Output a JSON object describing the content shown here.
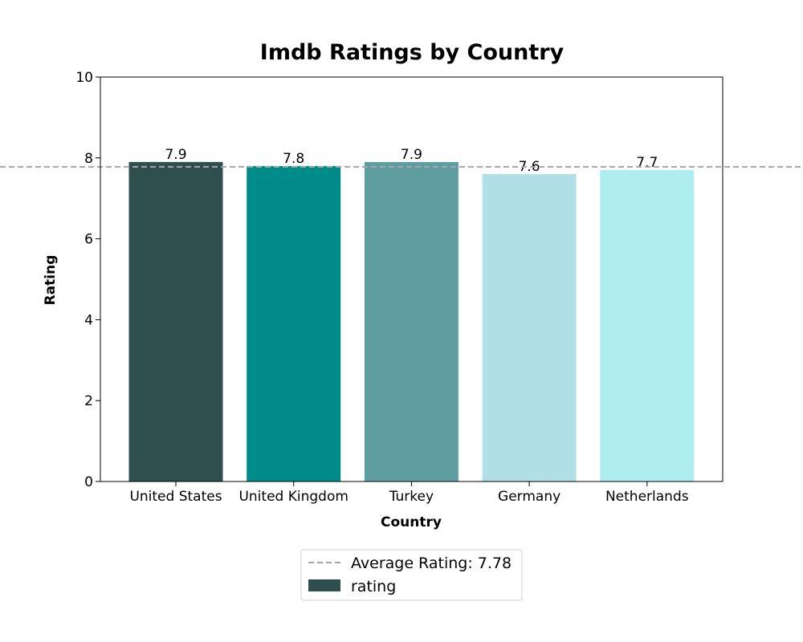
{
  "chart_data": {
    "type": "bar",
    "title": "Imdb Ratings by Country",
    "xlabel": "Country",
    "ylabel": "Rating",
    "ylim": [
      0,
      10
    ],
    "yticks": [
      0,
      2,
      4,
      6,
      8,
      10
    ],
    "categories": [
      "United States",
      "United Kingdom",
      "Turkey",
      "Germany",
      "Netherlands"
    ],
    "series": [
      {
        "name": "rating",
        "values": [
          7.9,
          7.8,
          7.9,
          7.6,
          7.7
        ],
        "colors": [
          "#2f4f4f",
          "#008b8b",
          "#5f9ea0",
          "#b0dfe5",
          "#afeeee"
        ]
      }
    ],
    "data_labels": [
      "7.9",
      "7.8",
      "7.9",
      "7.6",
      "7.7"
    ],
    "reference_line": {
      "label": "Average Rating: 7.78",
      "value": 7.78,
      "color": "#a6a6a6",
      "style": "dashed"
    },
    "legend": {
      "position": "bottom-center",
      "entries": [
        "Average Rating: 7.78",
        "rating"
      ]
    },
    "grid": false
  }
}
